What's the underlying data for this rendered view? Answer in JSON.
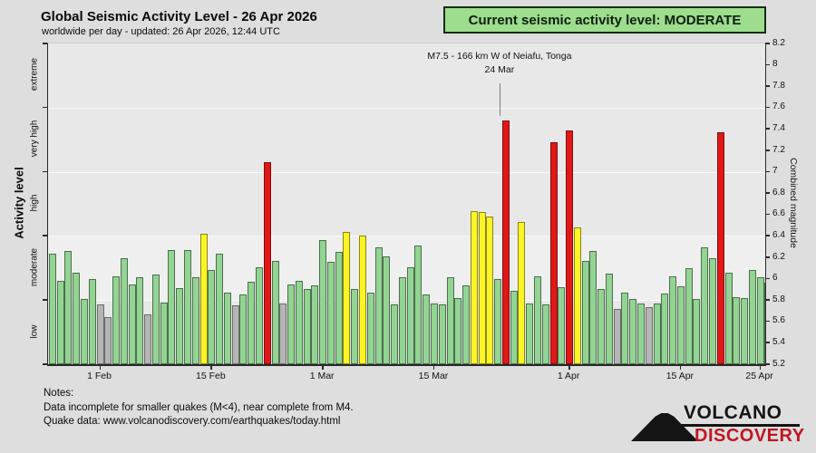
{
  "header": {
    "title": "Global Seismic Activity Level - 26 Apr 2026",
    "subtitle": "worldwide per day - updated: 26 Apr 2026, 12:44 UTC"
  },
  "badge": {
    "label": "Current seismic activity level: MODERATE",
    "bg": "#9edd8e"
  },
  "notes": {
    "line1": "Notes:",
    "line2": "Data incomplete for smaller quakes (M<4), near complete from M4.",
    "line3": "Quake data: www.volcanodiscovery.com/earthquakes/today.html"
  },
  "logo": {
    "word1": "VOLCANO",
    "word2": "DISCOVERY",
    "accent": "#bf1722"
  },
  "colors": {
    "green": {
      "fill": "#92d492",
      "border": "#4f6d4f"
    },
    "yellow": {
      "fill": "#fdf425",
      "border": "#87871a"
    },
    "red": {
      "fill": "#e21717",
      "border": "#7d0f0f"
    },
    "gray": {
      "fill": "#b5b5b5",
      "border": "#6b6b6b"
    }
  },
  "chart_data": {
    "type": "bar",
    "title": "Global Seismic Activity Level - 26 Apr 2026",
    "xlabel": "",
    "ylabel_left": "Activity level",
    "ylabel_right": "Combined magnitude",
    "y_right": {
      "min": 5.2,
      "max": 8.2,
      "step": 0.2
    },
    "gridlines_at": [
      5.8,
      6.4,
      7.0,
      7.6
    ],
    "highlight_band": {
      "from": 5.8,
      "to": 6.4
    },
    "activity_bands": [
      {
        "label": "low",
        "from": 5.2,
        "to": 5.8
      },
      {
        "label": "moderate",
        "from": 5.8,
        "to": 6.4
      },
      {
        "label": "high",
        "from": 6.4,
        "to": 7.0
      },
      {
        "label": "very high",
        "from": 7.0,
        "to": 7.6
      },
      {
        "label": "extreme",
        "from": 7.6,
        "to": 8.2
      }
    ],
    "x_ticks": [
      {
        "day": 6,
        "label": "1 Feb"
      },
      {
        "day": 20,
        "label": "15 Feb"
      },
      {
        "day": 34,
        "label": "1 Mar"
      },
      {
        "day": 48,
        "label": "15 Mar"
      },
      {
        "day": 65,
        "label": "1 Apr"
      },
      {
        "day": 79,
        "label": "15 Apr"
      },
      {
        "day": 89,
        "label": "25 Apr"
      }
    ],
    "annotation": {
      "line1": "M7.5 - 166 km W of Neiafu, Tonga",
      "line2": "24 Mar",
      "day": 57
    },
    "legend_colors_meaning": {
      "green": "moderate",
      "yellow": "high",
      "red": "very high",
      "gray": "incomplete data"
    },
    "points": [
      {
        "d": "26 Jan",
        "v": 6.23,
        "c": "green"
      },
      {
        "d": "27 Jan",
        "v": 5.98,
        "c": "green"
      },
      {
        "d": "28 Jan",
        "v": 6.26,
        "c": "green"
      },
      {
        "d": "29 Jan",
        "v": 6.06,
        "c": "green"
      },
      {
        "d": "30 Jan",
        "v": 5.81,
        "c": "green"
      },
      {
        "d": "31 Jan",
        "v": 6.0,
        "c": "green"
      },
      {
        "d": "1 Feb",
        "v": 5.76,
        "c": "gray"
      },
      {
        "d": "2 Feb",
        "v": 5.64,
        "c": "gray"
      },
      {
        "d": "3 Feb",
        "v": 6.02,
        "c": "green"
      },
      {
        "d": "4 Feb",
        "v": 6.19,
        "c": "green"
      },
      {
        "d": "5 Feb",
        "v": 5.95,
        "c": "green"
      },
      {
        "d": "6 Feb",
        "v": 6.01,
        "c": "green"
      },
      {
        "d": "7 Feb",
        "v": 5.67,
        "c": "gray"
      },
      {
        "d": "8 Feb",
        "v": 6.04,
        "c": "green"
      },
      {
        "d": "9 Feb",
        "v": 5.78,
        "c": "green"
      },
      {
        "d": "10 Feb",
        "v": 6.27,
        "c": "green"
      },
      {
        "d": "11 Feb",
        "v": 5.91,
        "c": "green"
      },
      {
        "d": "12 Feb",
        "v": 6.27,
        "c": "green"
      },
      {
        "d": "13 Feb",
        "v": 6.01,
        "c": "green"
      },
      {
        "d": "14 Feb",
        "v": 6.42,
        "c": "yellow"
      },
      {
        "d": "15 Feb",
        "v": 6.08,
        "c": "green"
      },
      {
        "d": "16 Feb",
        "v": 6.23,
        "c": "green"
      },
      {
        "d": "17 Feb",
        "v": 5.87,
        "c": "green"
      },
      {
        "d": "18 Feb",
        "v": 5.75,
        "c": "gray"
      },
      {
        "d": "19 Feb",
        "v": 5.85,
        "c": "green"
      },
      {
        "d": "20 Feb",
        "v": 5.97,
        "c": "green"
      },
      {
        "d": "21 Feb",
        "v": 6.11,
        "c": "green"
      },
      {
        "d": "22 Feb",
        "v": 7.09,
        "c": "red"
      },
      {
        "d": "23 Feb",
        "v": 6.17,
        "c": "green"
      },
      {
        "d": "24 Feb",
        "v": 5.77,
        "c": "gray"
      },
      {
        "d": "25 Feb",
        "v": 5.95,
        "c": "green"
      },
      {
        "d": "26 Feb",
        "v": 5.98,
        "c": "green"
      },
      {
        "d": "27 Feb",
        "v": 5.9,
        "c": "green"
      },
      {
        "d": "28 Feb",
        "v": 5.94,
        "c": "green"
      },
      {
        "d": "1 Mar",
        "v": 6.36,
        "c": "green"
      },
      {
        "d": "2 Mar",
        "v": 6.16,
        "c": "green"
      },
      {
        "d": "3 Mar",
        "v": 6.25,
        "c": "green"
      },
      {
        "d": "4 Mar",
        "v": 6.44,
        "c": "yellow"
      },
      {
        "d": "5 Mar",
        "v": 5.9,
        "c": "green"
      },
      {
        "d": "6 Mar",
        "v": 6.4,
        "c": "yellow"
      },
      {
        "d": "7 Mar",
        "v": 5.87,
        "c": "green"
      },
      {
        "d": "8 Mar",
        "v": 6.29,
        "c": "green"
      },
      {
        "d": "9 Mar",
        "v": 6.21,
        "c": "green"
      },
      {
        "d": "10 Mar",
        "v": 5.76,
        "c": "green"
      },
      {
        "d": "11 Mar",
        "v": 6.01,
        "c": "green"
      },
      {
        "d": "12 Mar",
        "v": 6.11,
        "c": "green"
      },
      {
        "d": "13 Mar",
        "v": 6.31,
        "c": "green"
      },
      {
        "d": "14 Mar",
        "v": 5.85,
        "c": "green"
      },
      {
        "d": "15 Mar",
        "v": 5.77,
        "c": "green"
      },
      {
        "d": "16 Mar",
        "v": 5.76,
        "c": "green"
      },
      {
        "d": "17 Mar",
        "v": 6.01,
        "c": "green"
      },
      {
        "d": "18 Mar",
        "v": 5.82,
        "c": "green"
      },
      {
        "d": "19 Mar",
        "v": 5.94,
        "c": "green"
      },
      {
        "d": "20 Mar",
        "v": 6.63,
        "c": "yellow"
      },
      {
        "d": "21 Mar",
        "v": 6.62,
        "c": "yellow"
      },
      {
        "d": "22 Mar",
        "v": 6.58,
        "c": "yellow"
      },
      {
        "d": "23 Mar",
        "v": 6.0,
        "c": "green"
      },
      {
        "d": "24 Mar",
        "v": 7.48,
        "c": "red"
      },
      {
        "d": "25 Mar",
        "v": 5.89,
        "c": "green"
      },
      {
        "d": "26 Mar",
        "v": 6.53,
        "c": "yellow"
      },
      {
        "d": "27 Mar",
        "v": 5.77,
        "c": "green"
      },
      {
        "d": "28 Mar",
        "v": 6.02,
        "c": "green"
      },
      {
        "d": "29 Mar",
        "v": 5.76,
        "c": "green"
      },
      {
        "d": "30 Mar",
        "v": 7.28,
        "c": "red"
      },
      {
        "d": "31 Mar",
        "v": 5.92,
        "c": "green"
      },
      {
        "d": "1 Apr",
        "v": 7.39,
        "c": "red"
      },
      {
        "d": "2 Apr",
        "v": 6.48,
        "c": "yellow"
      },
      {
        "d": "3 Apr",
        "v": 6.17,
        "c": "green"
      },
      {
        "d": "4 Apr",
        "v": 6.26,
        "c": "green"
      },
      {
        "d": "5 Apr",
        "v": 5.9,
        "c": "green"
      },
      {
        "d": "6 Apr",
        "v": 6.05,
        "c": "green"
      },
      {
        "d": "7 Apr",
        "v": 5.72,
        "c": "gray"
      },
      {
        "d": "8 Apr",
        "v": 5.87,
        "c": "green"
      },
      {
        "d": "9 Apr",
        "v": 5.81,
        "c": "green"
      },
      {
        "d": "10 Apr",
        "v": 5.77,
        "c": "green"
      },
      {
        "d": "11 Apr",
        "v": 5.73,
        "c": "gray"
      },
      {
        "d": "12 Apr",
        "v": 5.77,
        "c": "green"
      },
      {
        "d": "13 Apr",
        "v": 5.86,
        "c": "green"
      },
      {
        "d": "14 Apr",
        "v": 6.02,
        "c": "green"
      },
      {
        "d": "15 Apr",
        "v": 5.93,
        "c": "green"
      },
      {
        "d": "16 Apr",
        "v": 6.1,
        "c": "green"
      },
      {
        "d": "17 Apr",
        "v": 5.81,
        "c": "green"
      },
      {
        "d": "18 Apr",
        "v": 6.29,
        "c": "green"
      },
      {
        "d": "19 Apr",
        "v": 6.19,
        "c": "green"
      },
      {
        "d": "20 Apr",
        "v": 7.37,
        "c": "red"
      },
      {
        "d": "21 Apr",
        "v": 6.06,
        "c": "green"
      },
      {
        "d": "22 Apr",
        "v": 5.83,
        "c": "green"
      },
      {
        "d": "23 Apr",
        "v": 5.82,
        "c": "green"
      },
      {
        "d": "24 Apr",
        "v": 6.08,
        "c": "green"
      },
      {
        "d": "25 Apr",
        "v": 6.01,
        "c": "green"
      },
      {
        "d": "26 Apr",
        "v": 5.96,
        "c": "green"
      }
    ]
  }
}
